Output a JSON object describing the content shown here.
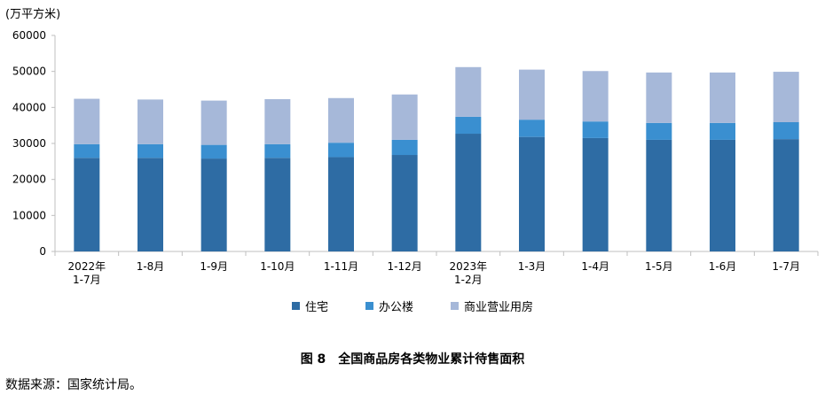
{
  "chart_data": {
    "type": "bar",
    "stacked": true,
    "unit_label": "(万平方米)",
    "categories": [
      [
        "2022年",
        "1-7月"
      ],
      [
        "1-8月"
      ],
      [
        "1-9月"
      ],
      [
        "1-10月"
      ],
      [
        "1-11月"
      ],
      [
        "1-12月"
      ],
      [
        "2023年",
        "1-2月"
      ],
      [
        "1-3月"
      ],
      [
        "1-4月"
      ],
      [
        "1-5月"
      ],
      [
        "1-6月"
      ],
      [
        "1-7月"
      ]
    ],
    "series": [
      {
        "name": "住宅",
        "color": "#2e6ca4",
        "values": [
          26000,
          26000,
          25800,
          26000,
          26200,
          26800,
          32700,
          31800,
          31500,
          31000,
          31000,
          31200
        ]
      },
      {
        "name": "办公楼",
        "color": "#3a8fd0",
        "values": [
          3800,
          3800,
          3800,
          3800,
          4000,
          4200,
          4700,
          4800,
          4600,
          4700,
          4700,
          4700
        ]
      },
      {
        "name": "商业营业用房",
        "color": "#a6b8d9",
        "values": [
          12600,
          12400,
          12300,
          12500,
          12400,
          12600,
          13800,
          13900,
          14000,
          14000,
          14000,
          14000
        ]
      }
    ],
    "ylim": [
      0,
      60000
    ],
    "yticks": [
      0,
      10000,
      20000,
      30000,
      40000,
      50000,
      60000
    ],
    "legend_position": "bottom",
    "grid": false
  },
  "caption": "图 8　全国商品房各类物业累计待售面积",
  "source": "数据来源：国家统计局。"
}
